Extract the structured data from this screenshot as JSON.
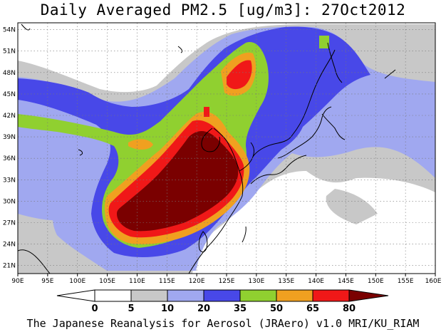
{
  "title": "Daily Averaged PM2.5 [ug/m3]: 27Oct2012",
  "footer": "The Japanese Reanalysis for Aerosol (JRAero) v1.0 MRI/KU_RIAM",
  "map": {
    "lon_ticks": [
      "90E",
      "95E",
      "100E",
      "105E",
      "110E",
      "115E",
      "120E",
      "125E",
      "130E",
      "135E",
      "140E",
      "145E",
      "150E",
      "155E",
      "160E"
    ],
    "lat_ticks": [
      "54N",
      "51N",
      "48N",
      "45N",
      "42N",
      "39N",
      "36N",
      "33N",
      "30N",
      "27N",
      "24N",
      "21N"
    ]
  },
  "colorbar": {
    "labels": [
      "0",
      "5",
      "10",
      "20",
      "35",
      "50",
      "65",
      "80"
    ],
    "colors": [
      "#ffffff",
      "#c8c8c8",
      "#a0a8f0",
      "#4848e8",
      "#90d030",
      "#f0a020",
      "#f01818",
      "#7a0000"
    ]
  }
}
